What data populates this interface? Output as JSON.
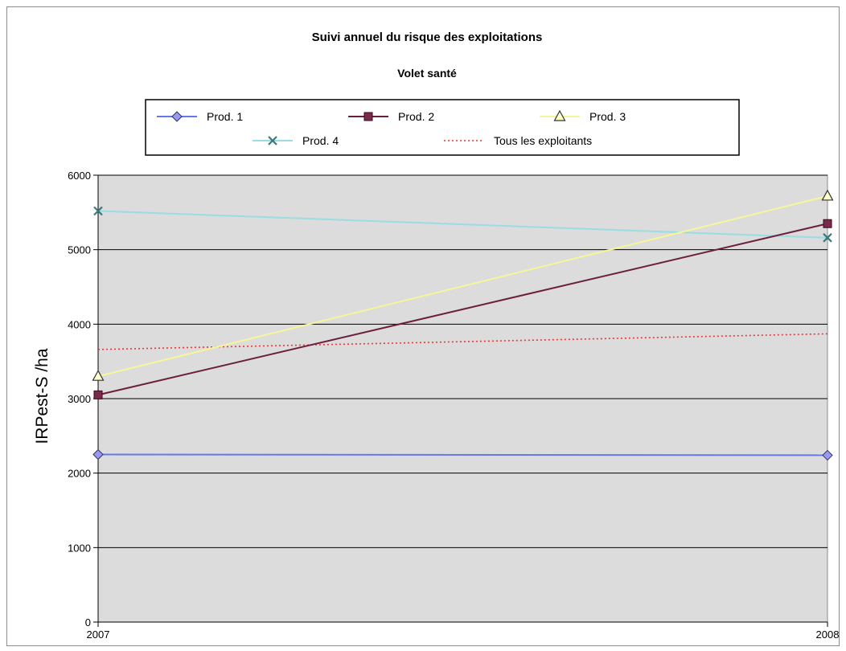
{
  "chart_data": {
    "type": "line",
    "title": "Suivi annuel du risque des exploitations",
    "subtitle": "Volet santé",
    "xlabel": "",
    "ylabel": "IRPest-S /ha",
    "categories": [
      "2007",
      "2008"
    ],
    "ylim": [
      0,
      6000
    ],
    "yticks": [
      "0",
      "1000",
      "2000",
      "3000",
      "4000",
      "5000",
      "6000"
    ],
    "grid": true,
    "legend_placement": "top",
    "plot_background": "#dcdcdc",
    "series": [
      {
        "name": "Prod. 1",
        "values": [
          2250,
          2240
        ],
        "color": "#6677ee",
        "marker": "diamond",
        "marker_fill": "#9999ee",
        "dash": "solid"
      },
      {
        "name": "Prod. 2",
        "values": [
          3050,
          5350
        ],
        "color": "#6b1f3f",
        "marker": "square",
        "marker_fill": "#7a2a4a",
        "dash": "solid"
      },
      {
        "name": "Prod. 3",
        "values": [
          3300,
          5720
        ],
        "color": "#f5f59a",
        "marker": "triangle",
        "marker_fill": "#ffffcc",
        "dash": "solid"
      },
      {
        "name": "Prod. 4",
        "values": [
          5520,
          5160
        ],
        "color": "#99dde0",
        "marker": "x",
        "marker_fill": "#3a7a78",
        "dash": "solid"
      },
      {
        "name": "Tous les exploitants",
        "values": [
          3660,
          3870
        ],
        "color": "#ee3333",
        "marker": "none",
        "marker_fill": "",
        "dash": "dotted"
      }
    ]
  }
}
